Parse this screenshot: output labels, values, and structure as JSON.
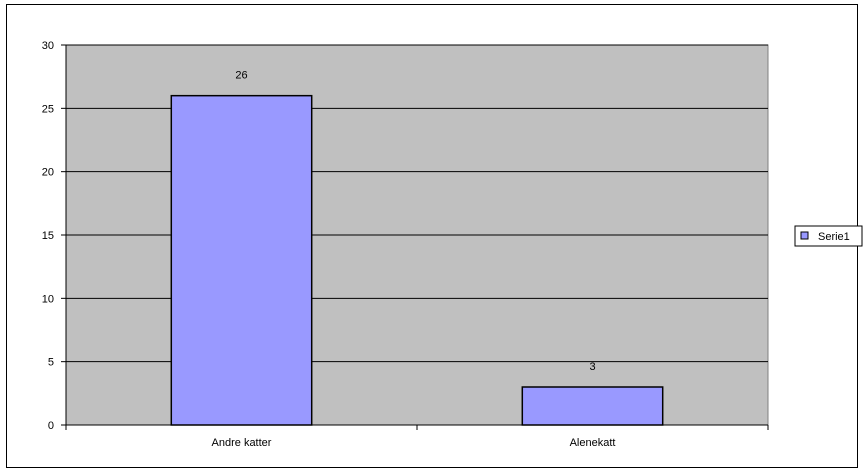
{
  "chart_data": {
    "type": "bar",
    "categories": [
      "Andre katter",
      "Alenekatt"
    ],
    "series": [
      {
        "name": "Serie1",
        "values": [
          26,
          3
        ],
        "color": "#9999ff"
      }
    ],
    "data_labels": [
      "26",
      "3"
    ],
    "ylim": [
      0,
      30
    ],
    "yticks": [
      0,
      5,
      10,
      15,
      20,
      25,
      30
    ],
    "grid": true,
    "plot_background": "#c0c0c0",
    "legend_position": "right"
  }
}
